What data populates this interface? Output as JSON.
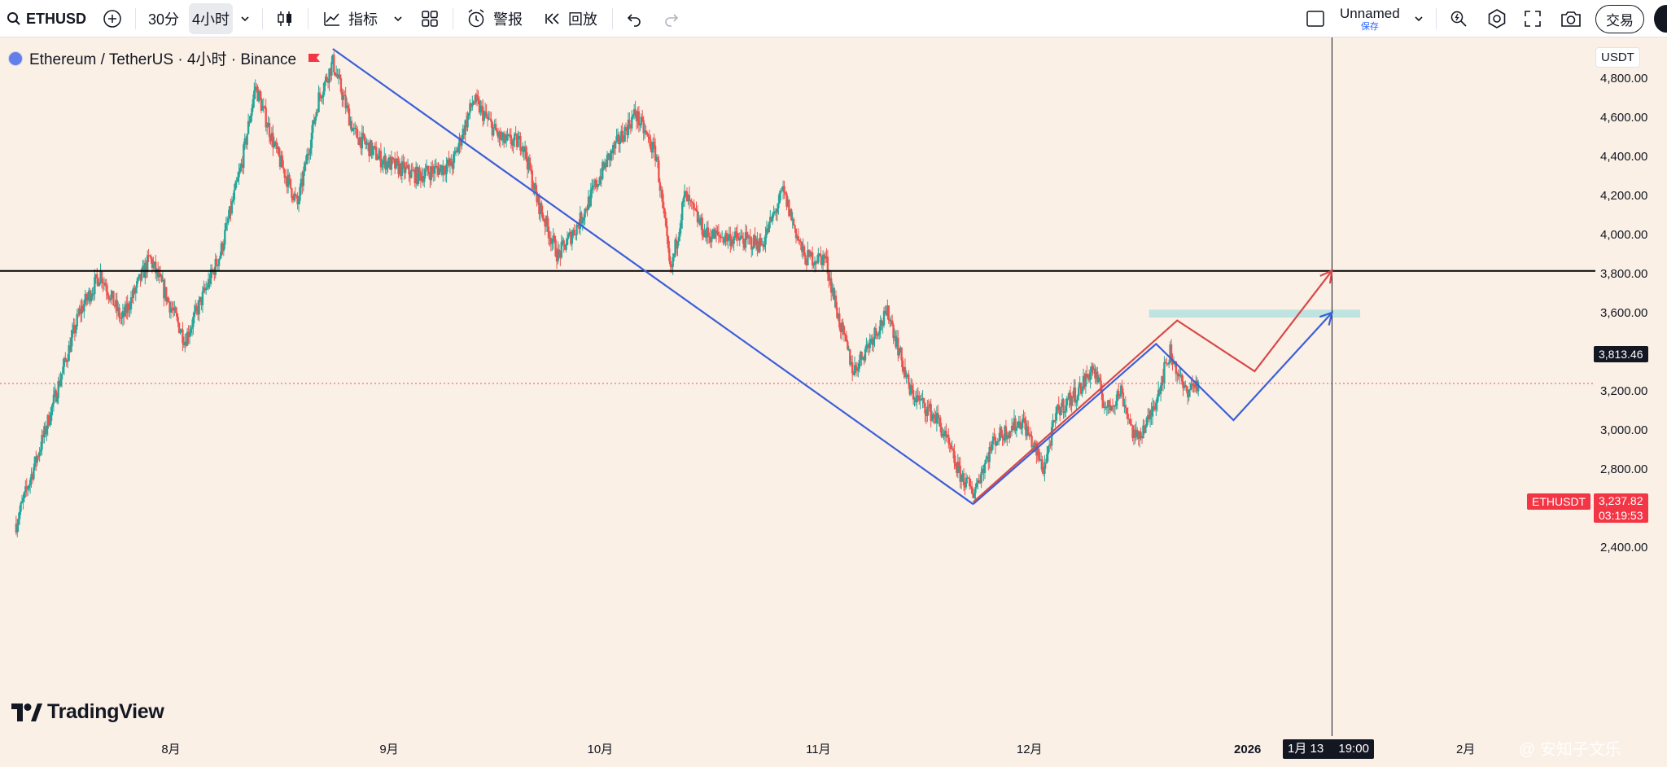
{
  "toolbar": {
    "symbol": "ETHUSD",
    "intervals": [
      "30分",
      "4小时"
    ],
    "active_interval": "4小时",
    "indicators_label": "指标",
    "alert_label": "警报",
    "replay_label": "回放",
    "layout_name": "Unnamed",
    "save_label": "保存",
    "trade_label": "交易",
    "icons": [
      "search-icon",
      "plus-circle-icon",
      "chevron-down-icon",
      "candles-icon",
      "indicator-icon",
      "templates-icon",
      "alarm-clock-icon",
      "replay-icon",
      "undo-icon",
      "redo-icon",
      "square-icon",
      "quick-search-icon",
      "settings-icon",
      "fullscreen-icon",
      "camera-icon"
    ]
  },
  "legend": {
    "title": "Ethereum / TetherUS · 4小时 · Binance",
    "currency": "USDT"
  },
  "brand": "TradingView",
  "watermark": "@ 安知子文乐",
  "colors": {
    "background": "#faf0e6",
    "up": "#26a69a",
    "down": "#ef5350",
    "blue_drawing": "#3c5fd8",
    "red_drawing": "#d84848",
    "zone": "#b3e0df",
    "horizontal_line": "#000000"
  },
  "chart_data": {
    "type": "candlestick",
    "symbol": "ETHUSDT",
    "exchange": "Binance",
    "interval": "4小时",
    "y_range": [
      2330,
      5000
    ],
    "y_ticks": [
      2400,
      2600,
      2800,
      3000,
      3200,
      3400,
      3600,
      3800,
      4000,
      4200,
      4400,
      4600,
      4800
    ],
    "y_tick_labels": [
      "2,400.00",
      "2,600.00",
      "2,800.00",
      "3,000.00",
      "3,200.00",
      "3,400.00",
      "3,600.00",
      "3,800.00",
      "4,000.00",
      "4,200.00",
      "4,400.00",
      "4,600.00",
      "4,800.00"
    ],
    "x_range": [
      "2025-07-10",
      "2026-03-01"
    ],
    "x_ticks": [
      {
        "date": "2025-08-01",
        "label": "8月"
      },
      {
        "date": "2025-09-01",
        "label": "9月"
      },
      {
        "date": "2025-10-01",
        "label": "10月"
      },
      {
        "date": "2025-11-01",
        "label": "11月"
      },
      {
        "date": "2025-12-01",
        "label": "12月"
      },
      {
        "date": "2026-01-01",
        "label": "2026"
      },
      {
        "date": "2026-02-01",
        "label": "2月"
      }
    ],
    "price_path": [
      [
        "2025-07-10",
        2520
      ],
      [
        "2025-07-14",
        2980
      ],
      [
        "2025-07-19",
        3600
      ],
      [
        "2025-07-22",
        3800
      ],
      [
        "2025-07-25",
        3560
      ],
      [
        "2025-07-29",
        3880
      ],
      [
        "2025-08-03",
        3460
      ],
      [
        "2025-08-08",
        3900
      ],
      [
        "2025-08-11",
        4350
      ],
      [
        "2025-08-13",
        4760
      ],
      [
        "2025-08-16",
        4420
      ],
      [
        "2025-08-19",
        4150
      ],
      [
        "2025-08-22",
        4700
      ],
      [
        "2025-08-24",
        4880
      ],
      [
        "2025-08-27",
        4520
      ],
      [
        "2025-08-31",
        4380
      ],
      [
        "2025-09-05",
        4300
      ],
      [
        "2025-09-10",
        4360
      ],
      [
        "2025-09-13",
        4690
      ],
      [
        "2025-09-17",
        4480
      ],
      [
        "2025-09-20",
        4470
      ],
      [
        "2025-09-22",
        4180
      ],
      [
        "2025-09-25",
        3890
      ],
      [
        "2025-09-28",
        4060
      ],
      [
        "2025-10-02",
        4380
      ],
      [
        "2025-10-06",
        4620
      ],
      [
        "2025-10-09",
        4400
      ],
      [
        "2025-10-11",
        3800
      ],
      [
        "2025-10-13",
        4200
      ],
      [
        "2025-10-16",
        4000
      ],
      [
        "2025-10-20",
        3980
      ],
      [
        "2025-10-24",
        3950
      ],
      [
        "2025-10-27",
        4220
      ],
      [
        "2025-10-30",
        3880
      ],
      [
        "2025-11-02",
        3880
      ],
      [
        "2025-11-04",
        3550
      ],
      [
        "2025-11-06",
        3300
      ],
      [
        "2025-11-09",
        3500
      ],
      [
        "2025-11-11",
        3600
      ],
      [
        "2025-11-14",
        3200
      ],
      [
        "2025-11-18",
        3050
      ],
      [
        "2025-11-21",
        2780
      ],
      [
        "2025-11-23",
        2680
      ],
      [
        "2025-11-26",
        2950
      ],
      [
        "2025-11-30",
        3050
      ],
      [
        "2025-12-03",
        2800
      ],
      [
        "2025-12-05",
        3100
      ],
      [
        "2025-12-08",
        3200
      ],
      [
        "2025-12-10",
        3320
      ],
      [
        "2025-12-12",
        3100
      ],
      [
        "2025-12-14",
        3200
      ],
      [
        "2025-12-16",
        2950
      ],
      [
        "2025-12-18",
        3050
      ],
      [
        "2025-12-21",
        3400
      ],
      [
        "2025-12-23",
        3200
      ],
      [
        "2025-12-25",
        3240
      ]
    ],
    "horizontal_line": {
      "price": 3813.46,
      "label": "3,813.46"
    },
    "last_price": {
      "price": 3237.82,
      "label": "3,237.82",
      "symbol_label": "ETHUSDT",
      "countdown": "03:19:53"
    },
    "crosshair": {
      "date": "2026-01-13",
      "label": "1月 13",
      "time": "19:00"
    },
    "zone": {
      "from": "2025-12-18",
      "to": "2026-01-17",
      "low": 3575,
      "high": 3615
    },
    "drawings": [
      {
        "color": "blue",
        "points": [
          [
            "2025-08-24",
            4950
          ],
          [
            "2025-11-23",
            2620
          ]
        ]
      },
      {
        "color": "blue",
        "points": [
          [
            "2025-11-23",
            2620
          ],
          [
            "2025-12-19",
            3440
          ],
          [
            "2025-12-30",
            3050
          ],
          [
            "2026-01-13",
            3600
          ]
        ]
      },
      {
        "color": "red",
        "points": [
          [
            "2025-11-23",
            2630
          ],
          [
            "2025-12-22",
            3560
          ],
          [
            "2026-01-02",
            3300
          ],
          [
            "2026-01-13",
            3815
          ]
        ]
      }
    ]
  }
}
